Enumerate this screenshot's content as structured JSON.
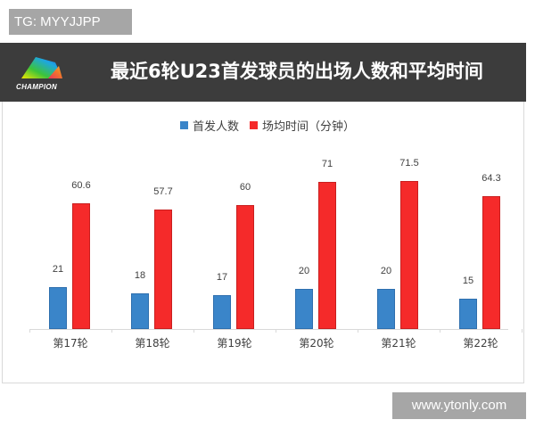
{
  "overlay": {
    "tag": "TG: MYYJJPP",
    "watermark": "www.ytonly.com"
  },
  "header": {
    "logo_text": "CHAMPION",
    "title": "最近6轮U23首发球员的出场人数和平均时间"
  },
  "colors": {
    "header_bg": "#3c3c3c",
    "series_blue": "#3a85c9",
    "series_red": "#f52a2a",
    "axis": "#d9d9d9"
  },
  "chart_data": {
    "type": "bar",
    "title": "最近6轮U23首发球员的出场人数和平均时间",
    "categories": [
      "第17轮",
      "第18轮",
      "第19轮",
      "第20轮",
      "第21轮",
      "第22轮"
    ],
    "series": [
      {
        "name": "首发人数",
        "color": "#3a85c9",
        "values": [
          21,
          18,
          17,
          20,
          20,
          15
        ]
      },
      {
        "name": "场均时间（分钟）",
        "color": "#f52a2a",
        "values": [
          60.6,
          57.7,
          60,
          71,
          71.5,
          64.3
        ]
      }
    ],
    "value_labels": {
      "首发人数": [
        "21",
        "18",
        "17",
        "20",
        "20",
        "15"
      ],
      "场均时间（分钟）": [
        "60.6",
        "57.7",
        "60",
        "71",
        "71.5",
        "64.3"
      ]
    },
    "xlabel": "",
    "ylabel": "",
    "y_axis_visible": false,
    "grid": false,
    "legend_position": "top"
  },
  "legend": [
    {
      "label": "首发人数"
    },
    {
      "label": "场均时间（分钟）"
    }
  ]
}
